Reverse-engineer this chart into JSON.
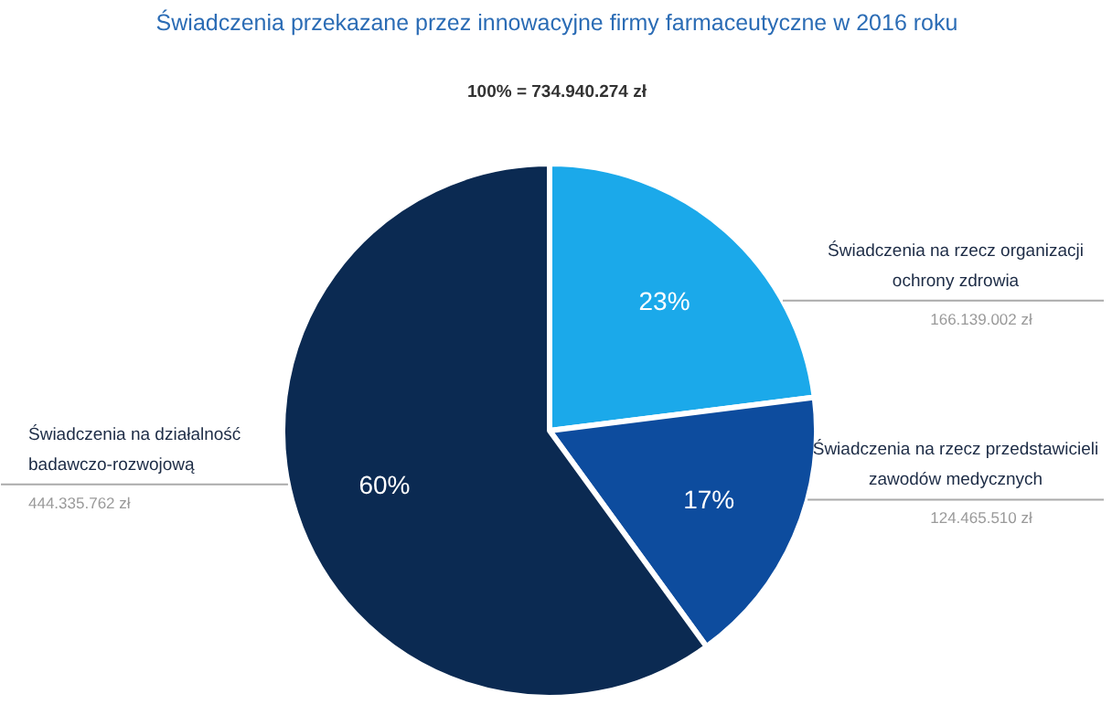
{
  "chart_data": {
    "type": "pie",
    "title": "Świadczenia przekazane przez innowacyjne firmy farmaceutyczne w 2016 roku",
    "subtitle": "100% = 734.940.274 zł",
    "categories": [
      "Świadczenia na rzecz organizacji ochrony zdrowia",
      "Świadczenia na rzecz przedstawicieli zawodów medycznych",
      "Świadczenia na działalność badawczo-rozwojową"
    ],
    "values": [
      23,
      17,
      60
    ],
    "colors": [
      "#1ba9ea",
      "#0d4c9e",
      "#0b2a52"
    ],
    "value_labels": [
      "23%",
      "17%",
      "60%"
    ],
    "annotations": [
      "166.139.002 zł",
      "124.465.510 zł",
      "444.335.762 zł"
    ]
  }
}
